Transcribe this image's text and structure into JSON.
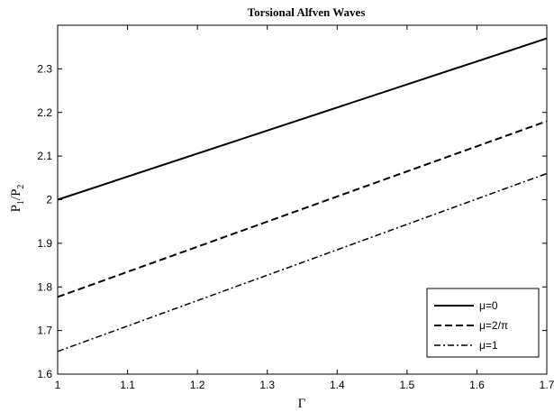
{
  "chart_data": {
    "type": "line",
    "title": "Torsional Alfven Waves",
    "xlabel": "Γ",
    "ylabel_main": "P",
    "ylabel_sub1": "1",
    "ylabel_sep": "/P",
    "ylabel_sub2": "2",
    "xlim": [
      1,
      1.7
    ],
    "ylim": [
      1.6,
      2.4
    ],
    "xticks": [
      "1",
      "1.1",
      "1.2",
      "1.3",
      "1.4",
      "1.5",
      "1.6",
      "1.7"
    ],
    "yticks": [
      "1.6",
      "1.7",
      "1.8",
      "1.9",
      "2",
      "2.1",
      "2.2",
      "2.3"
    ],
    "legend_position": "bottom-right",
    "series": [
      {
        "name": "μ=0",
        "style": "solid",
        "x": [
          1,
          1.7
        ],
        "y": [
          2.0,
          2.37
        ]
      },
      {
        "name": "μ=2/π",
        "style": "dashed",
        "x": [
          1,
          1.7
        ],
        "y": [
          1.777,
          2.18
        ]
      },
      {
        "name": "μ=1",
        "style": "dashdot",
        "x": [
          1,
          1.7
        ],
        "y": [
          1.652,
          2.06
        ]
      }
    ]
  }
}
